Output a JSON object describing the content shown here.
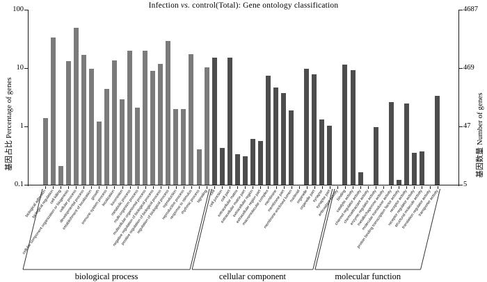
{
  "title": {
    "pre": "Infection ",
    "vs": "vs.",
    "post": " control(Total): Gene ontology classification",
    "full": "Infection vs. control(Total): Gene ontology classification"
  },
  "left_axis": {
    "label": "基因占比  Percentage of genes",
    "ticks": [
      {
        "label": "100",
        "v": 100
      },
      {
        "label": "10",
        "v": 10
      },
      {
        "label": "1",
        "v": 1
      },
      {
        "label": "0.1",
        "v": 0.1
      }
    ]
  },
  "right_axis": {
    "label": "基因数量  Number of genes",
    "ticks": [
      {
        "label": "4687",
        "v": 100
      },
      {
        "label": "469",
        "v": 10
      },
      {
        "label": "47",
        "v": 1
      },
      {
        "label": "5",
        "v": 0.1
      }
    ]
  },
  "chart_data": {
    "type": "bar",
    "title": "Infection vs. control(Total): Gene ontology classification",
    "ylabel": "Percentage of genes",
    "y2label": "Number of genes",
    "yscale": "log",
    "ylim": [
      0.1,
      100
    ],
    "y2lim": [
      5,
      4687
    ],
    "grid": false,
    "legend": false,
    "groups": [
      {
        "name": "biological process",
        "color": "#7b7b7b",
        "bars": [
          {
            "label": "biological adhesion",
            "value": 1.4
          },
          {
            "label": "biological regulation",
            "value": 33
          },
          {
            "label": "cell killing",
            "value": 0.21
          },
          {
            "label": "cellular component organization or biogenesis",
            "value": 13
          },
          {
            "label": "cellular process",
            "value": 49
          },
          {
            "label": "developmental process",
            "value": 17
          },
          {
            "label": "establishment of localization",
            "value": 9.7
          },
          {
            "label": "growth",
            "value": 1.2
          },
          {
            "label": "immune system process",
            "value": 4.4
          },
          {
            "label": "localization",
            "value": 13.4
          },
          {
            "label": "locomotion",
            "value": 2.9
          },
          {
            "label": "metabolic process",
            "value": 19.7
          },
          {
            "label": "multi-organism process",
            "value": 2.1
          },
          {
            "label": "multicellular organismal process",
            "value": 19.9
          },
          {
            "label": "negative regulation of biological process",
            "value": 9.0
          },
          {
            "label": "positive regulation of biological process",
            "value": 11.9
          },
          {
            "label": "regulation of biological process",
            "value": 29
          },
          {
            "label": "reproduction",
            "value": 2.0
          },
          {
            "label": "reproductive process",
            "value": 2.0
          },
          {
            "label": "response to stimulus",
            "value": 17.5
          },
          {
            "label": "rhythmic process",
            "value": 0.41
          },
          {
            "label": "signaling",
            "value": 10.4
          }
        ]
      },
      {
        "name": "cellular component",
        "color": "#4d4d4d",
        "bars": [
          {
            "label": "cell",
            "value": 14.9
          },
          {
            "label": "cell junction",
            "value": 0.43
          },
          {
            "label": "cell part",
            "value": 14.9
          },
          {
            "label": "extracellular matrix",
            "value": 0.33
          },
          {
            "label": "extracellular matrix part",
            "value": 0.31
          },
          {
            "label": "extracellular region",
            "value": 0.61
          },
          {
            "label": "extracellular region part",
            "value": 0.57
          },
          {
            "label": "macromolecular complex",
            "value": 7.3
          },
          {
            "label": "membrane",
            "value": 4.6
          },
          {
            "label": "membrane part",
            "value": 3.7
          },
          {
            "label": "membrane-enclosed lumen",
            "value": 1.9
          },
          {
            "label": "nucleoid",
            "value": null
          },
          {
            "label": "organelle",
            "value": 9.6
          },
          {
            "label": "organelle part",
            "value": 7.9
          },
          {
            "label": "synapse",
            "value": 1.33
          },
          {
            "label": "synapse part",
            "value": 1.03
          }
        ]
      },
      {
        "name": "molecular function",
        "color": "#4d4d4d",
        "bars": [
          {
            "label": "antioxidant activity",
            "value": null
          },
          {
            "label": "binding",
            "value": 11.6
          },
          {
            "label": "catalytic activity",
            "value": 9.2
          },
          {
            "label": "channel regulator activity",
            "value": 0.165
          },
          {
            "label": "chemoattractant activity",
            "value": null
          },
          {
            "label": "enzyme regulator activity",
            "value": 0.96
          },
          {
            "label": "metallochaperone activity",
            "value": null
          },
          {
            "label": "molecular transducer activity",
            "value": 2.6
          },
          {
            "label": "protein binding transcription factor activity",
            "value": 0.12
          },
          {
            "label": "receptor activity",
            "value": 2.5
          },
          {
            "label": "receptor regulator activity",
            "value": 0.35
          },
          {
            "label": "structural molecule activity",
            "value": 0.37
          },
          {
            "label": "translation regulator activity",
            "value": null
          },
          {
            "label": "transporter activity",
            "value": 3.3
          }
        ]
      }
    ]
  }
}
